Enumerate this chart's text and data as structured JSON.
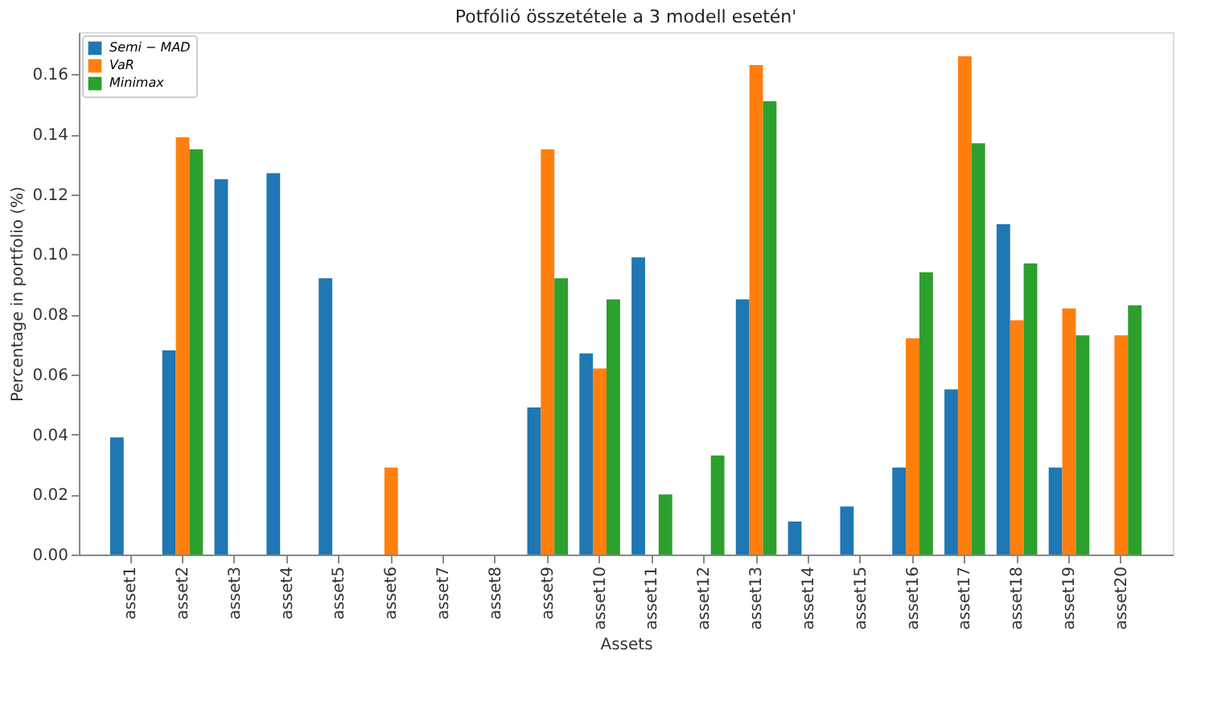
{
  "chart_data": {
    "type": "bar",
    "title": "Potfólió összetétele a 3 modell esetén'",
    "xlabel": "Assets",
    "ylabel": "Percentage in portfolio (%)",
    "categories": [
      "asset1",
      "asset2",
      "asset3",
      "asset4",
      "asset5",
      "asset6",
      "asset7",
      "asset8",
      "asset9",
      "asset10",
      "asset11",
      "asset12",
      "asset13",
      "asset14",
      "asset15",
      "asset16",
      "asset17",
      "asset18",
      "asset19",
      "asset20"
    ],
    "series": [
      {
        "name": "Semi − MAD",
        "color": "#1f77b4",
        "values": [
          0.039,
          0.068,
          0.125,
          0.127,
          0.092,
          null,
          null,
          null,
          0.049,
          0.067,
          0.099,
          null,
          0.085,
          0.011,
          0.016,
          0.029,
          0.055,
          0.11,
          0.029,
          null
        ]
      },
      {
        "name": "VaR",
        "color": "#ff7f0e",
        "values": [
          null,
          0.139,
          null,
          null,
          null,
          0.029,
          null,
          null,
          0.135,
          0.062,
          null,
          null,
          0.163,
          null,
          null,
          0.072,
          0.166,
          0.078,
          0.082,
          0.073
        ]
      },
      {
        "name": "Minimax",
        "color": "#2ca02c",
        "values": [
          null,
          0.135,
          null,
          null,
          null,
          null,
          null,
          null,
          0.092,
          0.085,
          0.02,
          0.033,
          0.151,
          null,
          null,
          0.094,
          0.137,
          0.097,
          0.073,
          0.083
        ]
      }
    ],
    "ylim": [
      0,
      0.174
    ],
    "yticks": [
      {
        "value": 0,
        "label": "0.00"
      },
      {
        "value": 0.02,
        "label": "0.02"
      },
      {
        "value": 0.04,
        "label": "0.04"
      },
      {
        "value": 0.06,
        "label": "0.06"
      },
      {
        "value": 0.08,
        "label": "0.08"
      },
      {
        "value": 0.1,
        "label": "0.10"
      },
      {
        "value": 0.12,
        "label": "0.12"
      },
      {
        "value": 0.14,
        "label": "0.14"
      },
      {
        "value": 0.16,
        "label": "0.16"
      }
    ],
    "grid": false,
    "legend": "top left"
  }
}
